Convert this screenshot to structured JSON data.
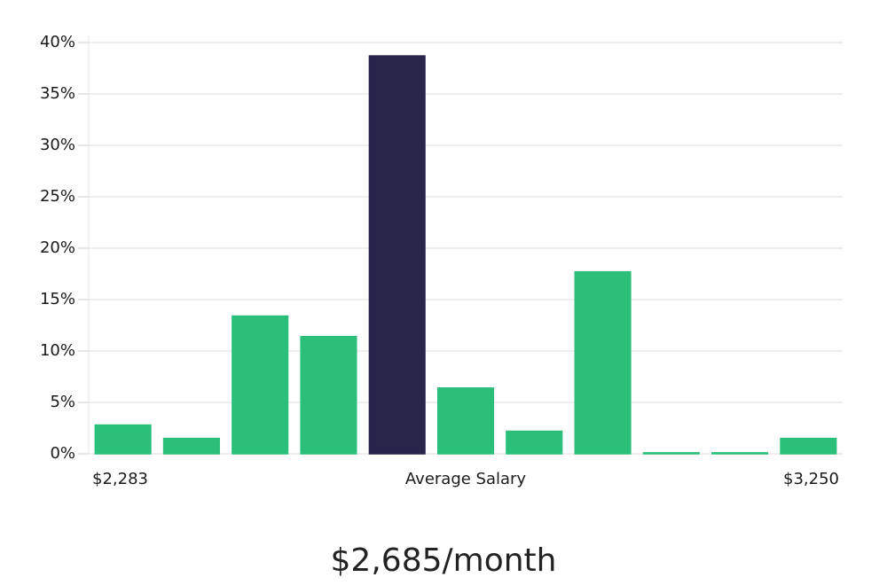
{
  "chart_data": {
    "type": "bar",
    "categories": [
      null,
      null,
      null,
      null,
      null,
      null,
      null,
      null,
      null,
      null,
      null
    ],
    "values": [
      2.8,
      1.5,
      13.4,
      11.4,
      38.7,
      6.4,
      2.2,
      17.7,
      0.1,
      0.1,
      1.5
    ],
    "colors": [
      "#2bbf7a",
      "#2bbf7a",
      "#2bbf7a",
      "#2bbf7a",
      "#27254a",
      "#2bbf7a",
      "#2bbf7a",
      "#2bbf7a",
      "#2bbf7a",
      "#2bbf7a",
      "#2bbf7a"
    ],
    "ylim": [
      0,
      40
    ],
    "yticks": [
      {
        "value": 0,
        "label": "0%"
      },
      {
        "value": 5,
        "label": "5%"
      },
      {
        "value": 10,
        "label": "10%"
      },
      {
        "value": 15,
        "label": "15%"
      },
      {
        "value": 20,
        "label": "20%"
      },
      {
        "value": 25,
        "label": "25%"
      },
      {
        "value": 30,
        "label": "30%"
      },
      {
        "value": 35,
        "label": "35%"
      },
      {
        "value": 40,
        "label": "40%"
      }
    ],
    "grid": true,
    "xlabels": [
      "$2,283",
      "Average Salary",
      "$3,250"
    ],
    "annotation": "$2,685/month"
  }
}
